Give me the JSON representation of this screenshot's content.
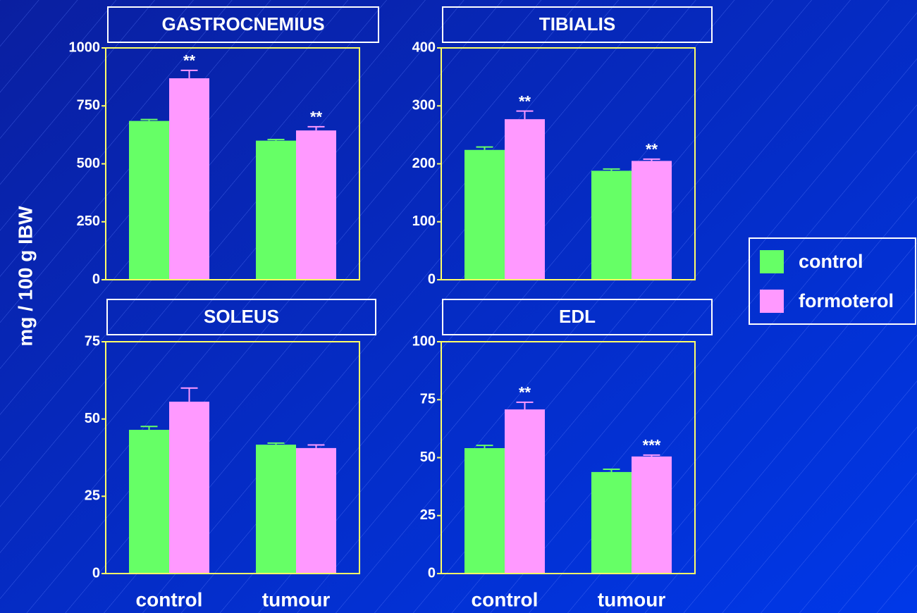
{
  "ylabel": "mg / 100 g IBW",
  "legend": "right",
  "chart_data": [
    {
      "type": "bar",
      "title": "GASTROCNEMIUS",
      "categories": [
        "control",
        "tumour"
      ],
      "ylim": [
        0,
        1000
      ],
      "yticks": [
        0,
        250,
        500,
        750,
        1000
      ],
      "series": [
        {
          "name": "control",
          "color": "#66ff66",
          "values": [
            685,
            600
          ],
          "errors": [
            6,
            5
          ]
        },
        {
          "name": "formoterol",
          "color": "#ff99ff",
          "values": [
            869,
            644
          ],
          "errors": [
            34,
            16
          ],
          "significance": [
            "**",
            "**"
          ]
        }
      ]
    },
    {
      "type": "bar",
      "title": "TIBIALIS",
      "categories": [
        "control",
        "tumour"
      ],
      "ylim": [
        0,
        400
      ],
      "yticks": [
        0,
        100,
        200,
        300,
        400
      ],
      "series": [
        {
          "name": "control",
          "color": "#66ff66",
          "values": [
            224,
            188
          ],
          "errors": [
            5,
            3
          ]
        },
        {
          "name": "formoterol",
          "color": "#ff99ff",
          "values": [
            277,
            205
          ],
          "errors": [
            14,
            3
          ],
          "significance": [
            "**",
            "**"
          ]
        }
      ]
    },
    {
      "type": "bar",
      "title": "SOLEUS",
      "categories": [
        "control",
        "tumour"
      ],
      "ylim": [
        0,
        75
      ],
      "yticks": [
        0,
        25,
        50,
        75
      ],
      "series": [
        {
          "name": "control",
          "color": "#66ff66",
          "values": [
            46.5,
            41.7
          ],
          "errors": [
            1.1,
            0.5
          ]
        },
        {
          "name": "formoterol",
          "color": "#ff99ff",
          "values": [
            55.6,
            40.6
          ],
          "errors": [
            4.4,
            1
          ]
        }
      ]
    },
    {
      "type": "bar",
      "title": "EDL",
      "categories": [
        "control",
        "tumour"
      ],
      "ylim": [
        0,
        100
      ],
      "yticks": [
        0,
        25,
        50,
        75,
        100
      ],
      "series": [
        {
          "name": "control",
          "color": "#66ff66",
          "values": [
            54.1,
            43.8
          ],
          "errors": [
            1.2,
            1.2
          ]
        },
        {
          "name": "formoterol",
          "color": "#ff99ff",
          "values": [
            70.8,
            50.5
          ],
          "errors": [
            3.1,
            0.6
          ],
          "significance": [
            "**",
            "***"
          ]
        }
      ]
    }
  ]
}
